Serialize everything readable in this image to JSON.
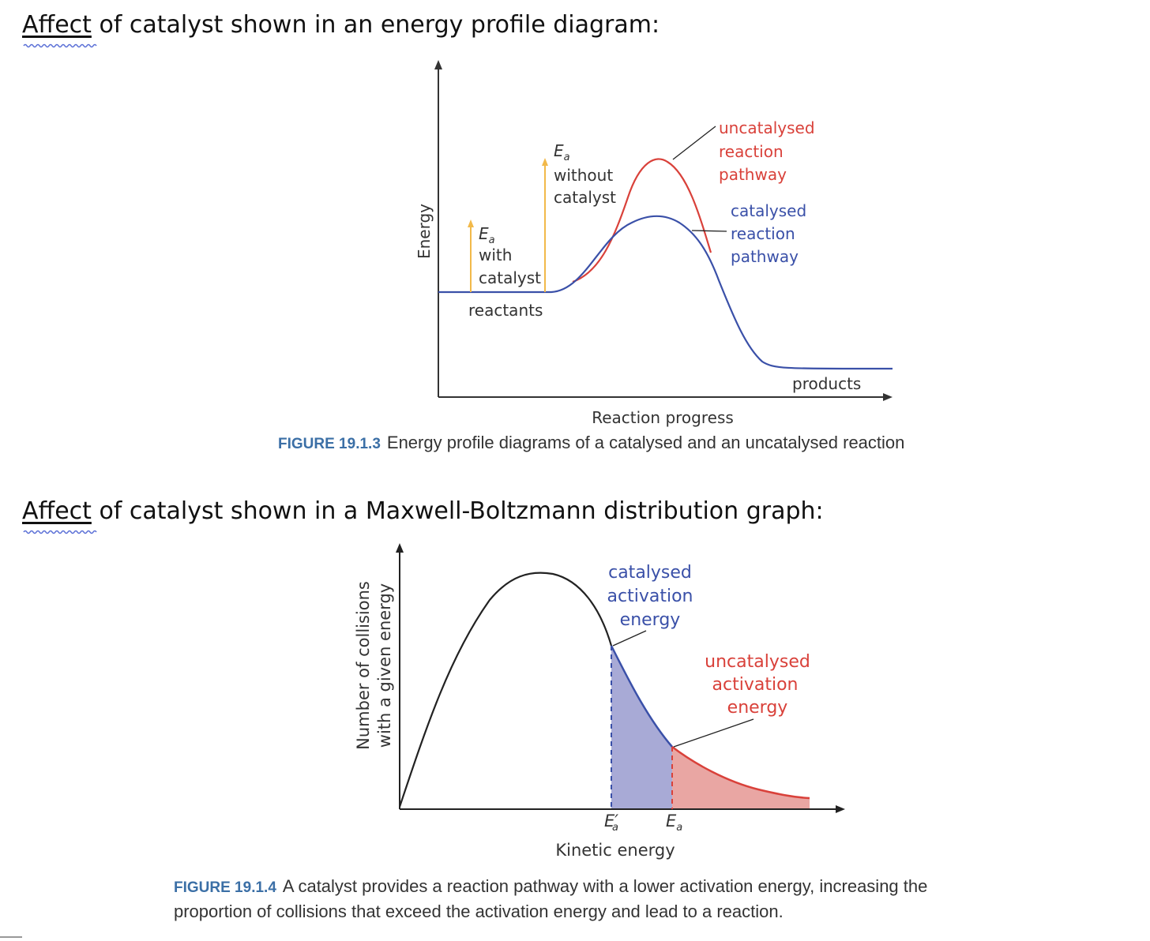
{
  "heading1": {
    "underlined": "Affect",
    "rest": " of catalyst shown in an energy profile diagram:"
  },
  "heading2": {
    "underlined": "Affect",
    "rest": " of catalyst shown in a Maxwell-Boltzmann distribution graph:"
  },
  "figure1": {
    "y_axis_label": "Energy",
    "x_axis_label": "Reaction progress",
    "ea_without_symbol": "E",
    "ea_without_subscript": "a",
    "ea_without_line1": "without",
    "ea_without_line2": "catalyst",
    "ea_with_symbol": "E",
    "ea_with_subscript": "a",
    "ea_with_line1": "with",
    "ea_with_line2": "catalyst",
    "reactants_label": "reactants",
    "products_label": "products",
    "uncat_line1": "uncatalysed",
    "uncat_line2": "reaction",
    "uncat_line3": "pathway",
    "cat_line1": "catalysed",
    "cat_line2": "reaction",
    "cat_line3": "pathway",
    "caption_number": "FIGURE 19.1.3",
    "caption_text": "Energy profile diagrams of a catalysed and an uncatalysed reaction"
  },
  "figure2": {
    "y_axis_line1": "Number of collisions",
    "y_axis_line2": "with a given energy",
    "x_axis_label": "Kinetic energy",
    "cat_line1": "catalysed",
    "cat_line2": "activation",
    "cat_line3": "energy",
    "uncat_line1": "uncatalysed",
    "uncat_line2": "activation",
    "uncat_line3": "energy",
    "ea_prime_symbol": "E′",
    "ea_prime_subscript": "a",
    "ea_symbol": "E",
    "ea_subscript": "a",
    "caption_number": "FIGURE 19.1.4",
    "caption_line1": "A catalyst provides a reaction pathway with a lower activation energy, increasing the",
    "caption_line2": "proportion of collisions that exceed the activation energy and lead to a reaction."
  },
  "colors": {
    "uncatalysed": "#d9413a",
    "catalysed": "#3a50a8",
    "arrow": "#f2b94a",
    "cat_fill": "#a8aad6",
    "uncat_fill": "#e9a6a3",
    "caption_number": "#3b6fa6"
  }
}
